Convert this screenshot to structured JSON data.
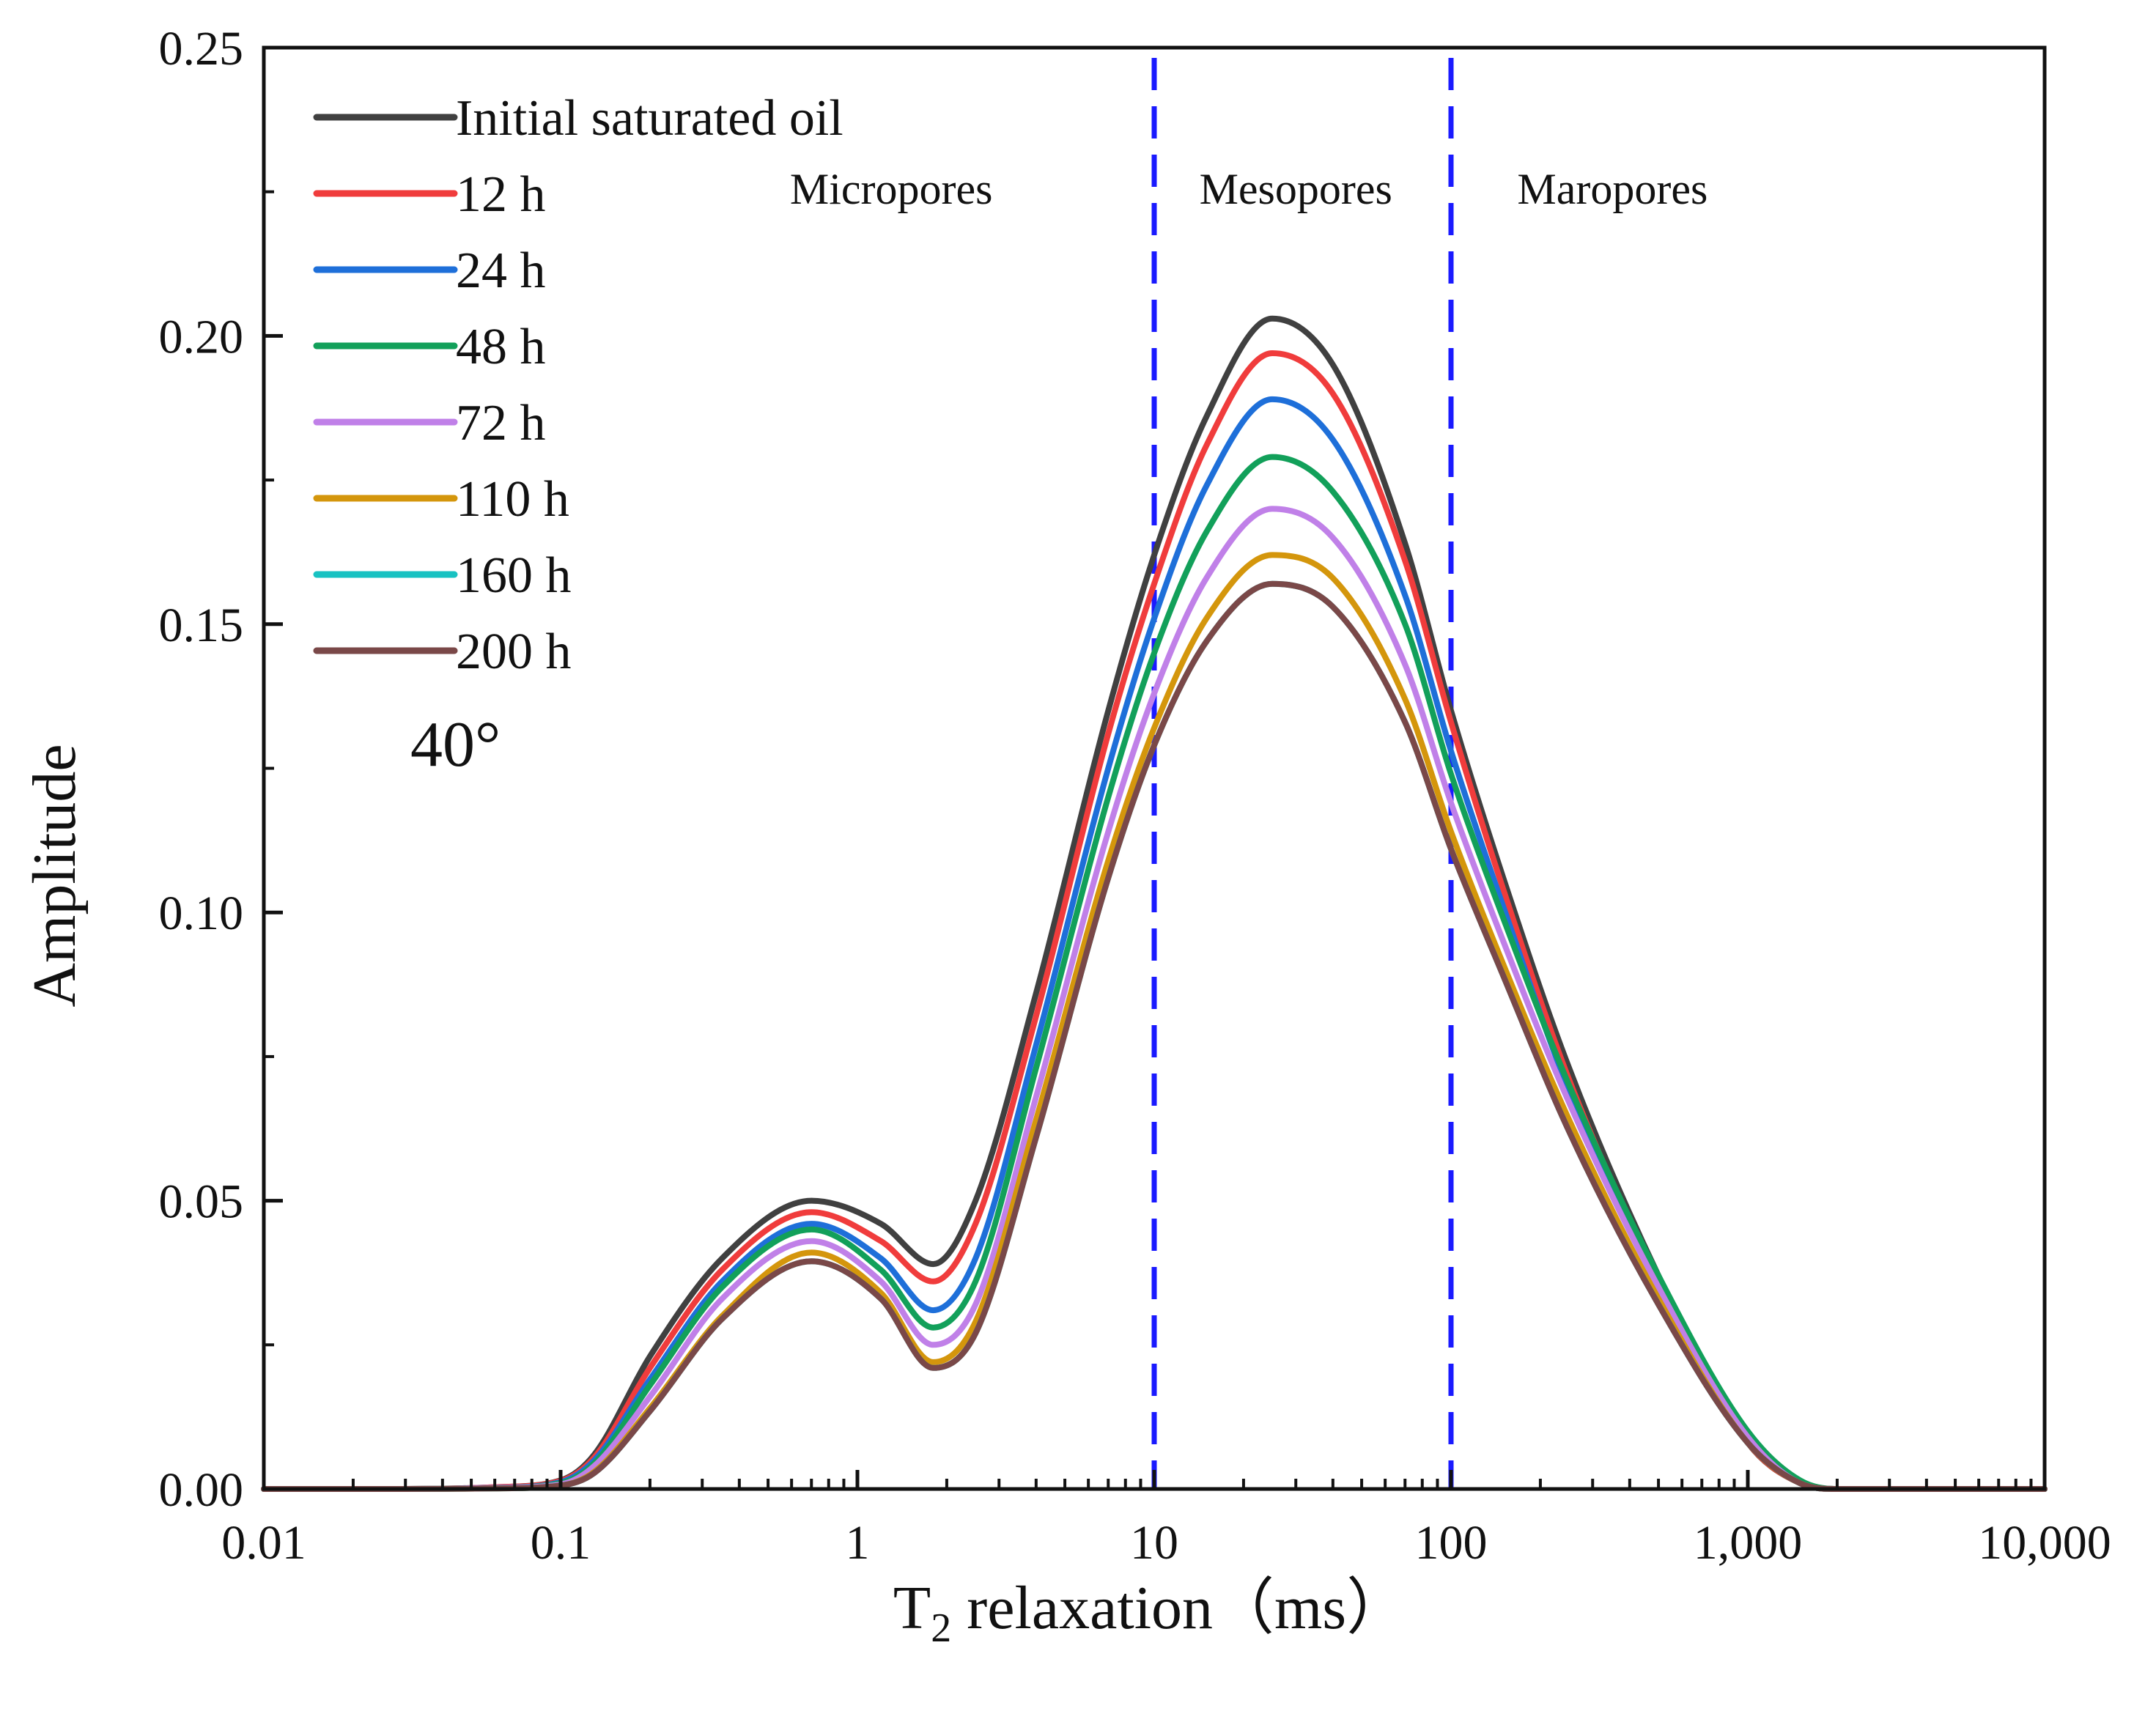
{
  "chart_data": {
    "type": "line",
    "title": "",
    "xlabel_main": "T",
    "xlabel_sub": "2",
    "xlabel_rest": " relaxation（ms）",
    "ylabel": "Amplitude",
    "xscale": "log",
    "xlim": [
      0.01,
      10000
    ],
    "ylim": [
      0,
      0.25
    ],
    "xticks": [
      {
        "value": 0.01,
        "label": "0.01"
      },
      {
        "value": 0.1,
        "label": "0.1"
      },
      {
        "value": 1,
        "label": "1"
      },
      {
        "value": 10,
        "label": "10"
      },
      {
        "value": 100,
        "label": "100"
      },
      {
        "value": 1000,
        "label": "1,000"
      },
      {
        "value": 10000,
        "label": "10,000"
      }
    ],
    "yticks": [
      {
        "value": 0.0,
        "label": "0.00"
      },
      {
        "value": 0.05,
        "label": "0.05"
      },
      {
        "value": 0.1,
        "label": "0.10"
      },
      {
        "value": 0.15,
        "label": "0.15"
      },
      {
        "value": 0.2,
        "label": "0.20"
      },
      {
        "value": 0.25,
        "label": "0.25"
      }
    ],
    "grid": false,
    "legend_position": "top-left",
    "annotation": "40°",
    "vertical_lines": [
      {
        "x": 10,
        "color": "#1a1aff",
        "style": "dashed"
      },
      {
        "x": 100,
        "color": "#1a1aff",
        "style": "dashed"
      }
    ],
    "regions": [
      {
        "label": "Micropores",
        "x": 1.3
      },
      {
        "label": "Mesopores",
        "x": 30
      },
      {
        "label": "Maropores",
        "x": 350
      }
    ],
    "x": [
      0.01,
      0.03,
      0.06,
      0.1,
      0.13,
      0.2,
      0.35,
      0.7,
      1.2,
      1.8,
      2.5,
      4,
      7,
      10,
      15,
      25,
      40,
      70,
      100,
      150,
      250,
      500,
      1000,
      1500,
      2000,
      4000,
      10000
    ],
    "series": [
      {
        "name": "Initial saturated oil",
        "color": "#404040",
        "values": [
          0,
          0,
          0.0003,
          0.0015,
          0.006,
          0.023,
          0.04,
          0.05,
          0.046,
          0.039,
          0.05,
          0.086,
          0.135,
          0.162,
          0.186,
          0.203,
          0.195,
          0.164,
          0.135,
          0.106,
          0.073,
          0.037,
          0.008,
          0.001,
          0,
          0,
          0
        ]
      },
      {
        "name": "12 h",
        "color": "#f03c3c",
        "values": [
          0,
          0,
          0.0003,
          0.0014,
          0.0055,
          0.021,
          0.038,
          0.048,
          0.043,
          0.036,
          0.046,
          0.082,
          0.131,
          0.157,
          0.181,
          0.197,
          0.19,
          0.161,
          0.133,
          0.104,
          0.071,
          0.036,
          0.008,
          0.001,
          0,
          0,
          0
        ]
      },
      {
        "name": "24 h",
        "color": "#1e6fd9",
        "values": [
          0,
          0,
          0.0002,
          0.0012,
          0.005,
          0.019,
          0.036,
          0.046,
          0.04,
          0.031,
          0.04,
          0.077,
          0.125,
          0.151,
          0.174,
          0.189,
          0.182,
          0.155,
          0.128,
          0.101,
          0.069,
          0.035,
          0.009,
          0.001,
          0,
          0,
          0
        ]
      },
      {
        "name": "48 h",
        "color": "#12a05a",
        "values": [
          0,
          0,
          0.0002,
          0.001,
          0.0045,
          0.018,
          0.035,
          0.045,
          0.038,
          0.028,
          0.036,
          0.073,
          0.12,
          0.145,
          0.166,
          0.179,
          0.173,
          0.15,
          0.124,
          0.099,
          0.07,
          0.037,
          0.01,
          0.0015,
          0,
          0,
          0
        ]
      },
      {
        "name": "72 h",
        "color": "#c080e8",
        "values": [
          0,
          0,
          0.0002,
          0.0008,
          0.004,
          0.016,
          0.033,
          0.043,
          0.036,
          0.025,
          0.032,
          0.068,
          0.114,
          0.138,
          0.158,
          0.17,
          0.165,
          0.143,
          0.119,
          0.095,
          0.067,
          0.035,
          0.009,
          0.001,
          0,
          0,
          0
        ]
      },
      {
        "name": "110 h",
        "color": "#d4960c",
        "values": [
          0,
          0,
          0.0001,
          0.0006,
          0.003,
          0.014,
          0.03,
          0.041,
          0.034,
          0.022,
          0.029,
          0.064,
          0.109,
          0.132,
          0.151,
          0.162,
          0.158,
          0.137,
          0.114,
          0.091,
          0.064,
          0.033,
          0.008,
          0.001,
          0,
          0,
          0
        ]
      },
      {
        "name": "160 h",
        "color": "#18c2c2",
        "values": [
          0,
          0,
          0.0001,
          0.0006,
          0.0028,
          0.0135,
          0.0295,
          0.0395,
          0.033,
          0.021,
          0.027,
          0.061,
          0.106,
          0.129,
          0.147,
          0.157,
          0.153,
          0.133,
          0.111,
          0.089,
          0.062,
          0.032,
          0.008,
          0.001,
          0,
          0,
          0
        ]
      },
      {
        "name": "200 h",
        "color": "#7a4848",
        "values": [
          0,
          0,
          0.0001,
          0.0006,
          0.0028,
          0.0135,
          0.0295,
          0.0395,
          0.033,
          0.021,
          0.027,
          0.061,
          0.106,
          0.129,
          0.147,
          0.157,
          0.153,
          0.133,
          0.111,
          0.089,
          0.062,
          0.032,
          0.008,
          0.001,
          0,
          0,
          0
        ]
      }
    ]
  }
}
